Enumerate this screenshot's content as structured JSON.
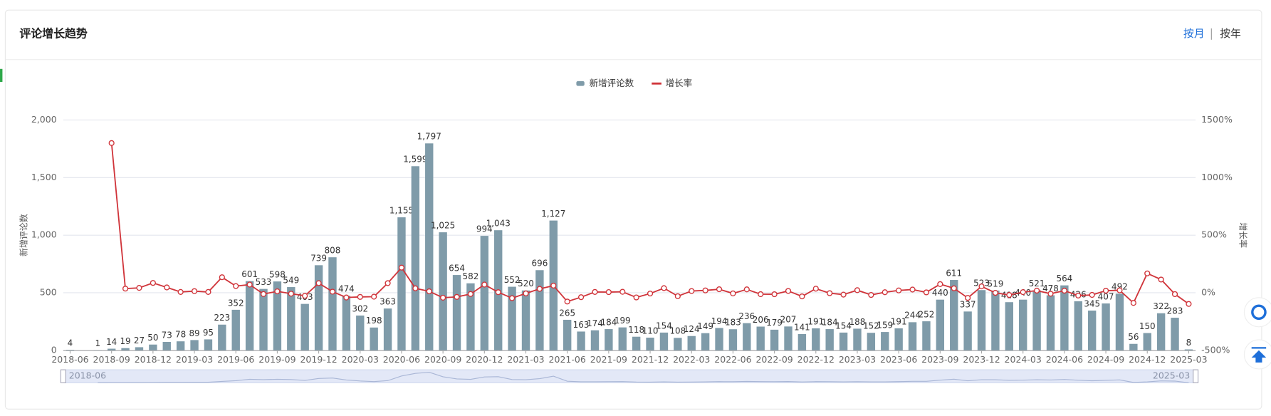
{
  "header": {
    "title": "评论增长趋势",
    "toggles": [
      "按月",
      "按年"
    ]
  },
  "chart_data": {
    "type": "bar-line",
    "categories": [
      "2018-06",
      null,
      null,
      "2018-09",
      null,
      null,
      "2018-12",
      null,
      null,
      "2019-03",
      null,
      null,
      "2019-06",
      null,
      null,
      "2019-09",
      null,
      null,
      "2019-12",
      null,
      null,
      "2020-03",
      null,
      null,
      "2020-06",
      null,
      null,
      "2020-09",
      null,
      null,
      "2020-12",
      null,
      null,
      "2021-03",
      null,
      null,
      "2021-06",
      null,
      null,
      "2021-09",
      null,
      null,
      "2021-12",
      null,
      null,
      "2022-03",
      null,
      null,
      "2022-06",
      null,
      null,
      "2022-09",
      null,
      null,
      "2022-12",
      null,
      null,
      "2023-03",
      null,
      null,
      "2023-06",
      null,
      null,
      "2023-09",
      null,
      null,
      "2023-12",
      null,
      null,
      "2024-03",
      null,
      null,
      "2024-06",
      null,
      null,
      "2024-09",
      null,
      null,
      "2024-12",
      null,
      null,
      "2025-03"
    ],
    "ylabel": "新增评论数",
    "y2label": "增长率",
    "ylim": [
      0,
      2000
    ],
    "yticks": [
      0,
      500,
      {
        "value": 1000,
        "label": "1,000"
      },
      {
        "value": 1500,
        "label": "1,500"
      },
      {
        "value": 2000,
        "label": "2,000"
      }
    ],
    "y2lim": [
      -500,
      1500
    ],
    "y2ticks": [
      {
        "value": -500,
        "label": "-500%"
      },
      {
        "value": 0,
        "label": "0%"
      },
      {
        "value": 500,
        "label": "500%"
      },
      {
        "value": 1000,
        "label": "1000%"
      },
      {
        "value": 1500,
        "label": "1500%"
      }
    ],
    "grid": true,
    "legend": "top",
    "series": [
      {
        "name": "新增评论数",
        "color": "#7f9ba9",
        "values": [
          4,
          null,
          1,
          14,
          19,
          27,
          50,
          73,
          78,
          89,
          95,
          223,
          352,
          601,
          533,
          598,
          549,
          403,
          739,
          808,
          474,
          302,
          198,
          363,
          1155,
          1599,
          1797,
          1025,
          654,
          582,
          994,
          1043,
          552,
          520,
          696,
          1127,
          265,
          163,
          174,
          184,
          199,
          118,
          110,
          154,
          108,
          124,
          149,
          194,
          183,
          236,
          206,
          179,
          207,
          141,
          191,
          184,
          154,
          188,
          152,
          159,
          191,
          244,
          252,
          440,
          611,
          337,
          523,
          519,
          418,
          440,
          521,
          478,
          564,
          426,
          345,
          407,
          492,
          56,
          150,
          322,
          283,
          8
        ],
        "value_labels": [
          "4",
          null,
          "1",
          "14",
          "19",
          "27",
          "50",
          "73",
          "78",
          "89",
          "95",
          "223",
          "352",
          "601",
          "533",
          "598",
          "549",
          "403",
          "739",
          "808",
          "474",
          "302",
          "198",
          "363",
          "1,155",
          "1,599",
          "1,797",
          "1,025",
          "654",
          "582",
          "994",
          "1,043",
          "552",
          "520",
          "696",
          "1,127",
          "265",
          "163",
          "174",
          "184",
          "199",
          "118",
          "110",
          "154",
          "108",
          "124",
          "149",
          "194",
          "183",
          "236",
          "206",
          "179",
          "207",
          "141",
          "191",
          "184",
          "154",
          "188",
          "152",
          "159",
          "191",
          "244",
          "252",
          "440",
          "611",
          "337",
          "523",
          "519",
          "418",
          "440",
          "521",
          "478",
          "564",
          "426",
          "345",
          "407",
          "492",
          "56",
          "150",
          "322",
          "283",
          "8"
        ]
      },
      {
        "name": "增长率",
        "color": "#d0343a",
        "axis": "y2",
        "values": [
          null,
          null,
          null,
          1300,
          35.7,
          42.1,
          85.2,
          46.0,
          6.8,
          14.1,
          6.7,
          134.7,
          57.8,
          70.7,
          -11.3,
          12.2,
          -8.2,
          -26.6,
          83.4,
          9.3,
          -41.3,
          -36.3,
          -34.4,
          83.3,
          218.2,
          38.4,
          12.4,
          -43.0,
          -36.2,
          -11.0,
          70.8,
          4.9,
          -47.1,
          -5.8,
          33.8,
          61.9,
          -76.5,
          -38.5,
          6.7,
          5.7,
          8.2,
          -40.7,
          -6.8,
          40.0,
          -29.9,
          14.8,
          20.2,
          30.2,
          -5.7,
          29.0,
          -12.7,
          -13.1,
          15.6,
          -31.9,
          35.5,
          -3.7,
          -16.3,
          22.1,
          -19.1,
          4.6,
          20.1,
          27.7,
          3.3,
          74.6,
          38.9,
          -44.8,
          55.2,
          -0.8,
          -19.5,
          5.3,
          18.4,
          -8.3,
          18.0,
          -24.5,
          -19.0,
          18.0,
          20.9,
          -88.6,
          167.9,
          114.7,
          -12.1,
          -97.2
        ]
      }
    ],
    "zoom": {
      "start": "2018-06",
      "end": "2025-03"
    }
  }
}
